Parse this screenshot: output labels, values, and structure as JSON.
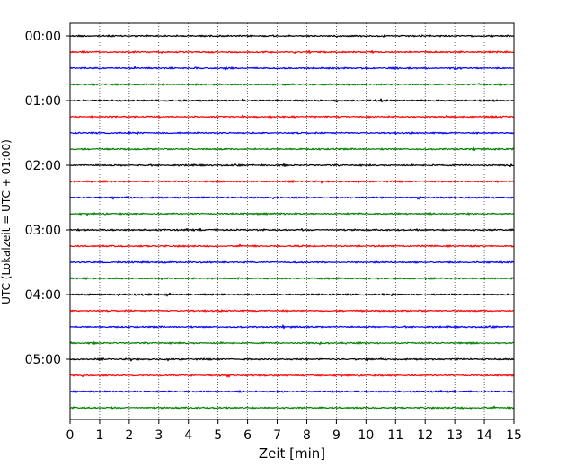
{
  "chart_data": {
    "type": "line",
    "title": "",
    "xlabel": "Zeit  [min]",
    "ylabel": "UTC (Lokalzeit = UTC + 01:00)",
    "xlim": [
      0,
      15
    ],
    "x_ticks": [
      0,
      1,
      2,
      3,
      4,
      5,
      6,
      7,
      8,
      9,
      10,
      11,
      12,
      13,
      14,
      15
    ],
    "y_tick_labels": [
      "00:00",
      "01:00",
      "02:00",
      "03:00",
      "04:00",
      "05:00"
    ],
    "traces_per_hour": 4,
    "minutes_per_trace": 15,
    "trace_colors": [
      "#000000",
      "#ff0000",
      "#0000ff",
      "#007f00"
    ],
    "series": [
      {
        "start": "00:00"
      },
      {
        "start": "00:15"
      },
      {
        "start": "00:30"
      },
      {
        "start": "00:45"
      },
      {
        "start": "01:00"
      },
      {
        "start": "01:15"
      },
      {
        "start": "01:30"
      },
      {
        "start": "01:45"
      },
      {
        "start": "02:00"
      },
      {
        "start": "02:15"
      },
      {
        "start": "02:30"
      },
      {
        "start": "02:45"
      },
      {
        "start": "03:00"
      },
      {
        "start": "03:15"
      },
      {
        "start": "03:30"
      },
      {
        "start": "03:45"
      },
      {
        "start": "04:00"
      },
      {
        "start": "04:15"
      },
      {
        "start": "04:30"
      },
      {
        "start": "04:45"
      },
      {
        "start": "05:00"
      },
      {
        "start": "05:15"
      },
      {
        "start": "05:30"
      },
      {
        "start": "05:45"
      }
    ],
    "grid": "vertical dotted",
    "legend": "none"
  }
}
